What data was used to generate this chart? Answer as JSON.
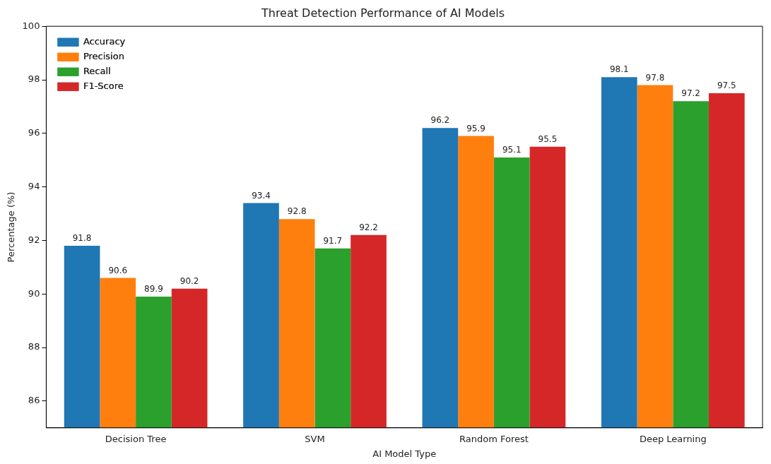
{
  "chart_data": {
    "type": "bar",
    "title": "Threat Detection Performance of AI Models",
    "xlabel": "AI Model Type",
    "ylabel": "Percentage (%)",
    "categories": [
      "Decision Tree",
      "SVM",
      "Random Forest",
      "Deep Learning"
    ],
    "series": [
      {
        "name": "Accuracy",
        "color": "#1f77b4",
        "values": [
          91.8,
          93.4,
          96.2,
          98.1
        ]
      },
      {
        "name": "Precision",
        "color": "#ff7f0e",
        "values": [
          90.6,
          92.8,
          95.9,
          97.8
        ]
      },
      {
        "name": "Recall",
        "color": "#2ca02c",
        "values": [
          89.9,
          91.7,
          95.1,
          97.2
        ]
      },
      {
        "name": "F1-Score",
        "color": "#d62728",
        "values": [
          90.2,
          92.2,
          95.5,
          97.5
        ]
      }
    ],
    "ylim": [
      85,
      100
    ],
    "yticks": [
      86,
      88,
      90,
      92,
      94,
      96,
      98,
      100
    ],
    "grid": false,
    "legend": "top left",
    "data_labels": true
  }
}
